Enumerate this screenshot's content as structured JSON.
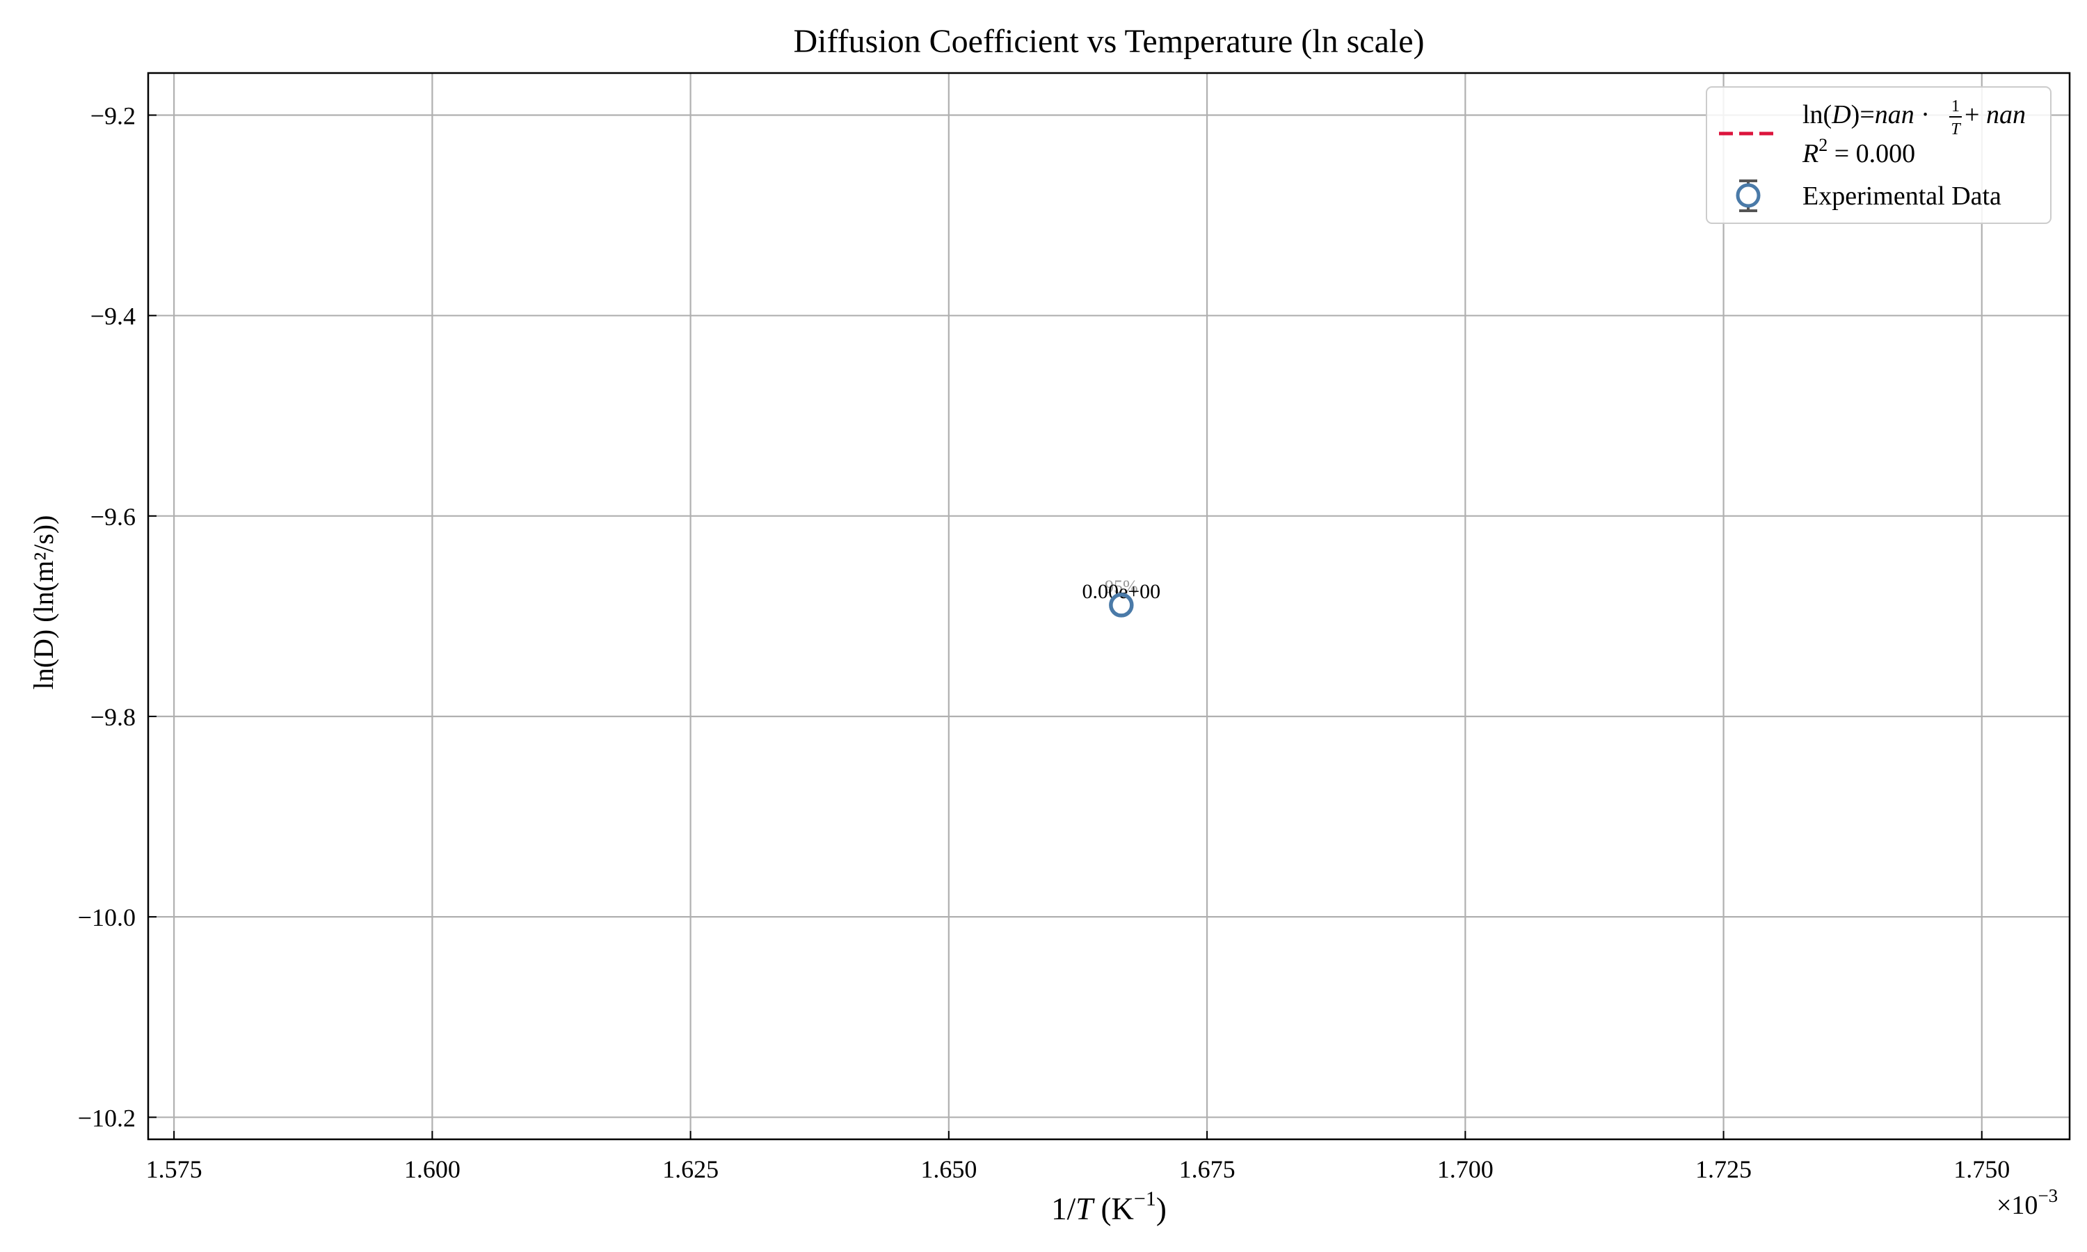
{
  "chart_data": {
    "type": "scatter",
    "title": "Diffusion Coefficient vs Temperature (ln scale)",
    "xlabel": "1/T (K⁻¹)",
    "xlabel_parts": {
      "pre": "1/",
      "var": "T",
      "unit": " (K",
      "sup": "−1",
      "post": ")"
    },
    "ylabel": "ln(D) (ln(m²/s))",
    "x_offset_label": {
      "base": "×10",
      "exp": "−3"
    },
    "xlim": [
      0.0015725,
      0.0017585
    ],
    "ylim": [
      -10.222,
      -9.158
    ],
    "xticks": [
      0.001575,
      0.0016,
      0.001625,
      0.00165,
      0.001675,
      0.0017,
      0.001725,
      0.00175
    ],
    "xtick_labels": [
      "1.575",
      "1.600",
      "1.625",
      "1.650",
      "1.675",
      "1.700",
      "1.725",
      "1.750"
    ],
    "yticks": [
      -9.2,
      -9.4,
      -9.6,
      -9.8,
      -10.0,
      -10.2
    ],
    "ytick_labels": [
      "−9.2",
      "−9.4",
      "−9.6",
      "−9.8",
      "−10.0",
      "−10.2"
    ],
    "grid": true,
    "legend_position": "top-right",
    "series": [
      {
        "name": "Experimental Data",
        "kind": "errorbar-scatter",
        "marker": "hollow-circle",
        "color": "#4a7aa8",
        "errorbar_color": "#555555",
        "points": [
          {
            "x": 0.0016667,
            "y": -9.6889,
            "label": "0.00e+00",
            "label_behind": "95%"
          }
        ]
      },
      {
        "kind": "fit-line",
        "style": "dashed",
        "color": "#dc143c",
        "label_line1": "ln(D) = nan · 1/T + nan",
        "label_line2": "R² = 0.000",
        "label_parts": {
          "ln": "ln(",
          "var_d": "D",
          "eq": ")=",
          "slope": "nan",
          "dot": " · ",
          "frac_num": "1",
          "frac_den": "T",
          "plus": " + ",
          "intercept": "nan",
          "r2_var": "R",
          "r2_sup": "2",
          "r2_eq": " = 0.000"
        },
        "points": []
      }
    ]
  }
}
